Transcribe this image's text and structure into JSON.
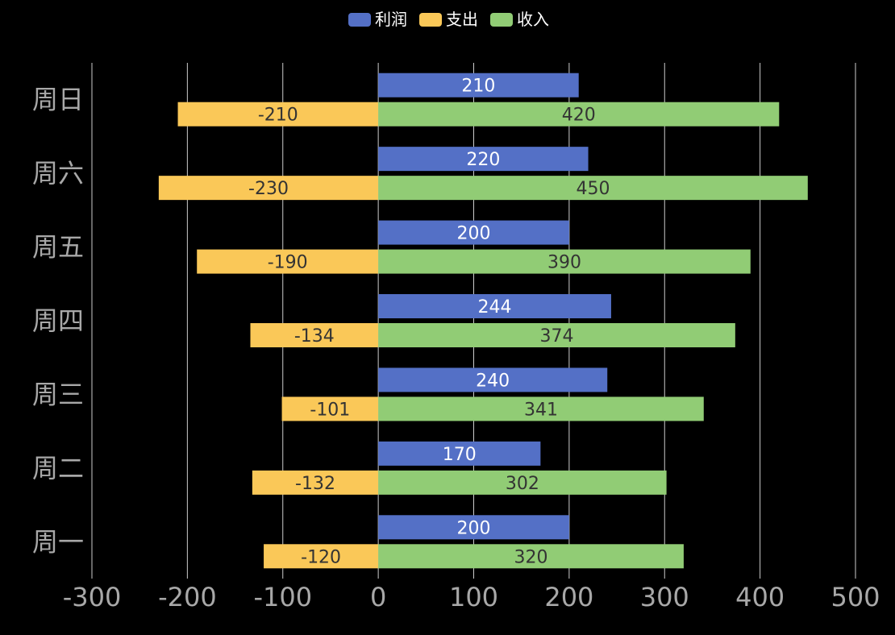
{
  "chart_data": {
    "type": "bar",
    "orientation": "horizontal",
    "categories": [
      "周一",
      "周二",
      "周三",
      "周四",
      "周五",
      "周六",
      "周日"
    ],
    "series": [
      {
        "name": "利润",
        "values": [
          200,
          170,
          240,
          244,
          200,
          220,
          210
        ],
        "color": "#5470c6",
        "stack": null
      },
      {
        "name": "支出",
        "values": [
          -120,
          -132,
          -101,
          -134,
          -190,
          -230,
          -210
        ],
        "color": "#fac858",
        "stack": "total"
      },
      {
        "name": "收入",
        "values": [
          320,
          302,
          341,
          374,
          390,
          450,
          420
        ],
        "color": "#91cc75",
        "stack": "total"
      }
    ],
    "xlim": [
      -300,
      500
    ],
    "xticks": [
      "-300",
      "-200",
      "-100",
      "0",
      "100",
      "200",
      "300",
      "400",
      "500"
    ],
    "grid": true,
    "legend_position": "top-center",
    "data_labels": true,
    "colors": {
      "background": "#000000",
      "gridline": "#cccccc",
      "tick_text": "#a8a8a8",
      "legend_text": "#ffffff",
      "label_on_blue": "#ffffff",
      "label_on_light": "#333333"
    }
  }
}
